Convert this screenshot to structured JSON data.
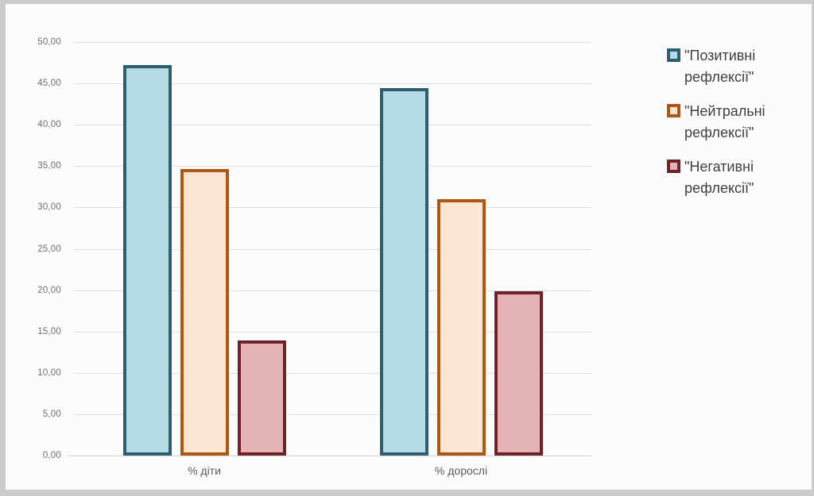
{
  "chart_data": {
    "type": "bar",
    "title": "",
    "categories": [
      "% діти",
      "% дорослі"
    ],
    "category_slugs": [
      "children",
      "adults"
    ],
    "series": [
      {
        "name": "\"Позитивні рефлексії\"",
        "slug": "positive-reflections",
        "legend_lines": [
          "\"Позитивні",
          "рефлексії\""
        ],
        "values": [
          47.2,
          44.4
        ],
        "fill": "#b5dbe6",
        "border": "#2d5f6e"
      },
      {
        "name": "\"Нейтральні рефлексії\"",
        "slug": "neutral-reflections",
        "legend_lines": [
          "\"Нейтральні",
          "рефлексії\""
        ],
        "values": [
          34.6,
          31.0
        ],
        "fill": "#fbe6d3",
        "border": "#ac5713"
      },
      {
        "name": "\"Негативні рефлексії\"",
        "slug": "negative-reflections",
        "legend_lines": [
          "\"Негативні",
          "рефлексії\""
        ],
        "values": [
          13.9,
          19.9
        ],
        "fill": "#e3b3b5",
        "border": "#6e2329"
      }
    ],
    "xlabel": "",
    "ylabel": "",
    "ylim": [
      0,
      50
    ],
    "ytick_step": 5,
    "ytick_labels": [
      "0,00",
      "5,00",
      "10,00",
      "15,00",
      "20,00",
      "25,00",
      "30,00",
      "35,00",
      "40,00",
      "45,00",
      "50,00"
    ],
    "grid": true,
    "legend_position": "right",
    "colors": {
      "panel_background": "#fcfcfc",
      "outer_background": "#cbcbcb",
      "gridline": "#dedede",
      "axis_line": "#d2d2d2",
      "tick_text": "#6d6d6d",
      "category_text": "#595959",
      "legend_text": "#3f3f3f"
    }
  }
}
